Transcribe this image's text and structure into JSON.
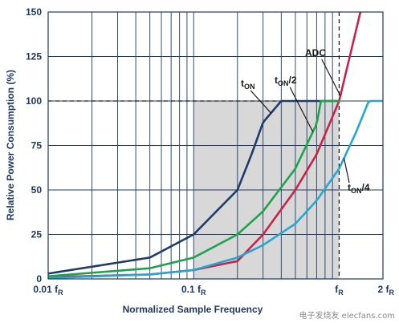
{
  "chart_data": {
    "type": "line",
    "xscale": "log",
    "xlabel": "Normalized Sample Frequency",
    "ylabel": "Relative Power Consumption (%)",
    "xlim": [
      0.01,
      2.0
    ],
    "ylim": [
      0,
      150
    ],
    "grid": true,
    "x_ticks": [
      {
        "value": 0.01,
        "label": "0.01 f",
        "sub": "R"
      },
      {
        "value": 0.1,
        "label": "0.1 f",
        "sub": "R"
      },
      {
        "value": 1.0,
        "label": "f",
        "sub": "R"
      },
      {
        "value": 2.0,
        "label": "2 f",
        "sub": "R"
      }
    ],
    "y_ticks": [
      0,
      25,
      50,
      75,
      100,
      125,
      150
    ],
    "reference_lines": {
      "y_value": 100,
      "x_value": 1.0
    },
    "shaded_region": {
      "x": [
        0.1,
        1.0
      ],
      "y": [
        0,
        100
      ],
      "color": "#d8d8d8"
    },
    "series": [
      {
        "key": "adc",
        "color": "#c8234a",
        "x": [
          0.01,
          0.05,
          0.1,
          0.2,
          0.3,
          0.5,
          0.7,
          1.0,
          1.4
        ],
        "y": [
          1,
          2.5,
          5,
          10,
          25,
          50,
          70,
          100,
          150
        ]
      },
      {
        "key": "ton",
        "color": "#1f3d6b",
        "x": [
          0.01,
          0.05,
          0.1,
          0.2,
          0.25,
          0.3,
          0.4,
          0.5,
          0.7,
          1.0
        ],
        "y": [
          3,
          12,
          25,
          50,
          70,
          88,
          100,
          100,
          100,
          100
        ]
      },
      {
        "key": "ton2",
        "color": "#1ea34a",
        "x": [
          0.01,
          0.05,
          0.1,
          0.2,
          0.3,
          0.5,
          0.7,
          0.75,
          1.0
        ],
        "y": [
          1.5,
          6,
          12,
          25,
          38,
          62,
          87,
          100,
          100
        ]
      },
      {
        "key": "ton4",
        "color": "#27a6cf",
        "x": [
          0.01,
          0.05,
          0.1,
          0.2,
          0.3,
          0.5,
          0.7,
          1.0,
          1.3,
          1.6,
          2.0
        ],
        "y": [
          0.5,
          2.5,
          5,
          12,
          19,
          31,
          44,
          62,
          82,
          100,
          100
        ]
      }
    ],
    "annotations": [
      {
        "series": "adc",
        "text": "ADC",
        "sub": "",
        "tail": ""
      },
      {
        "series": "ton",
        "text": "t",
        "sub": "ON",
        "tail": ""
      },
      {
        "series": "ton2",
        "text": "t",
        "sub": "ON",
        "tail": "/2"
      },
      {
        "series": "ton4",
        "text": "t",
        "sub": "ON",
        "tail": "/4"
      }
    ]
  },
  "watermark": "电子发烧友 elecfans.com"
}
